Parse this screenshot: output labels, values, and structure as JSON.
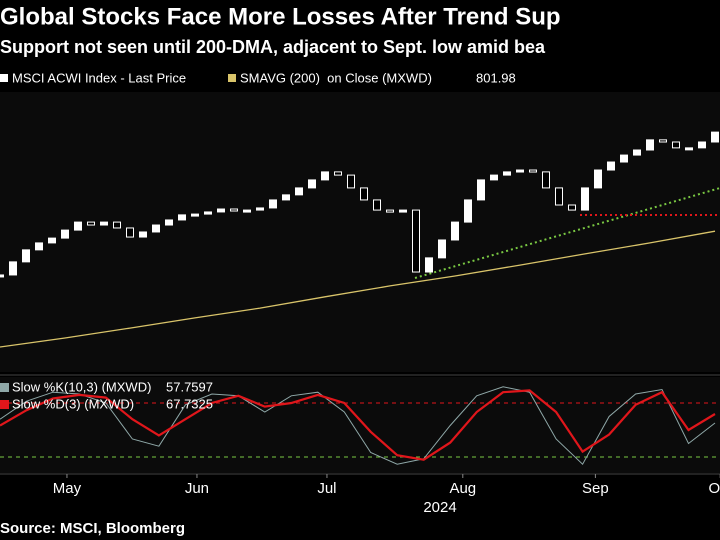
{
  "chart_data": [
    {
      "type": "candlestick",
      "title": "Global Stocks Face More Losses After Trend Sup",
      "subtitle": "Support not seen until 200-DMA, adjacent to Sept. low amid bea",
      "ylim": [
        750,
        853
      ],
      "xticks": [
        {
          "value": 5.15,
          "label": "May"
        },
        {
          "value": 15.15,
          "label": "Jun"
        },
        {
          "value": 25.15,
          "label": "Jul"
        },
        {
          "value": 35.6,
          "label": "Aug"
        },
        {
          "value": 45.8,
          "label": "Sep"
        },
        {
          "value": 55.4,
          "label": "Oct"
        }
      ],
      "xlabel": "2024",
      "source": "Source: MSCI, Bloomberg",
      "series": [
        {
          "name": "MSCI ACWI Index - Last Price",
          "color": "#ffffff",
          "values": [
            785.6,
            790.5,
            795.0,
            797.6,
            799.4,
            802.4,
            805.4,
            804.3,
            805.4,
            803.2,
            799.8,
            801.7,
            804.3,
            806.2,
            808.1,
            808.4,
            809.2,
            810.3,
            809.9,
            809.9,
            810.7,
            813.7,
            815.6,
            818.2,
            821.2,
            824.2,
            823.0,
            818.2,
            813.7,
            809.9,
            809.2,
            809.9,
            786.7,
            792.0,
            798.7,
            805.4,
            813.7,
            821.2,
            823.0,
            824.2,
            824.9,
            824.2,
            818.2,
            811.8,
            809.9,
            818.2,
            824.9,
            827.9,
            830.5,
            832.4,
            836.2,
            835.4,
            833.2,
            833.2,
            835.4,
            839.1
          ]
        },
        {
          "name": "SMAVG (200)  on Close (MXWD)",
          "color": "#d9c46a",
          "values": [
            758.6,
            762.0,
            765.7,
            769.5,
            773.2,
            777.4,
            781.5,
            785.2,
            789.3,
            793.5,
            797.6,
            801.98
          ]
        }
      ]
    },
    {
      "type": "line",
      "ylim": [
        0,
        100
      ],
      "levels": [
        80,
        20
      ],
      "series": [
        {
          "name": "Slow %K(10,3) (MXWD)",
          "color": "#8fa8a8",
          "values": [
            62,
            82,
            92,
            90,
            80,
            40,
            32,
            78,
            90,
            88,
            70,
            88,
            92,
            70,
            25,
            12,
            18,
            55,
            88,
            98,
            92,
            40,
            12,
            65,
            90,
            95,
            35,
            57.7597
          ]
        },
        {
          "name": "Slow %D(3) (MXWD)",
          "color": "#e0161b",
          "values": [
            55,
            72,
            85,
            89,
            86,
            62,
            44,
            62,
            80,
            88,
            76,
            80,
            89,
            80,
            48,
            22,
            17,
            36,
            70,
            92,
            94,
            70,
            26,
            45,
            78,
            92,
            50,
            67.7325
          ]
        }
      ]
    }
  ]
}
